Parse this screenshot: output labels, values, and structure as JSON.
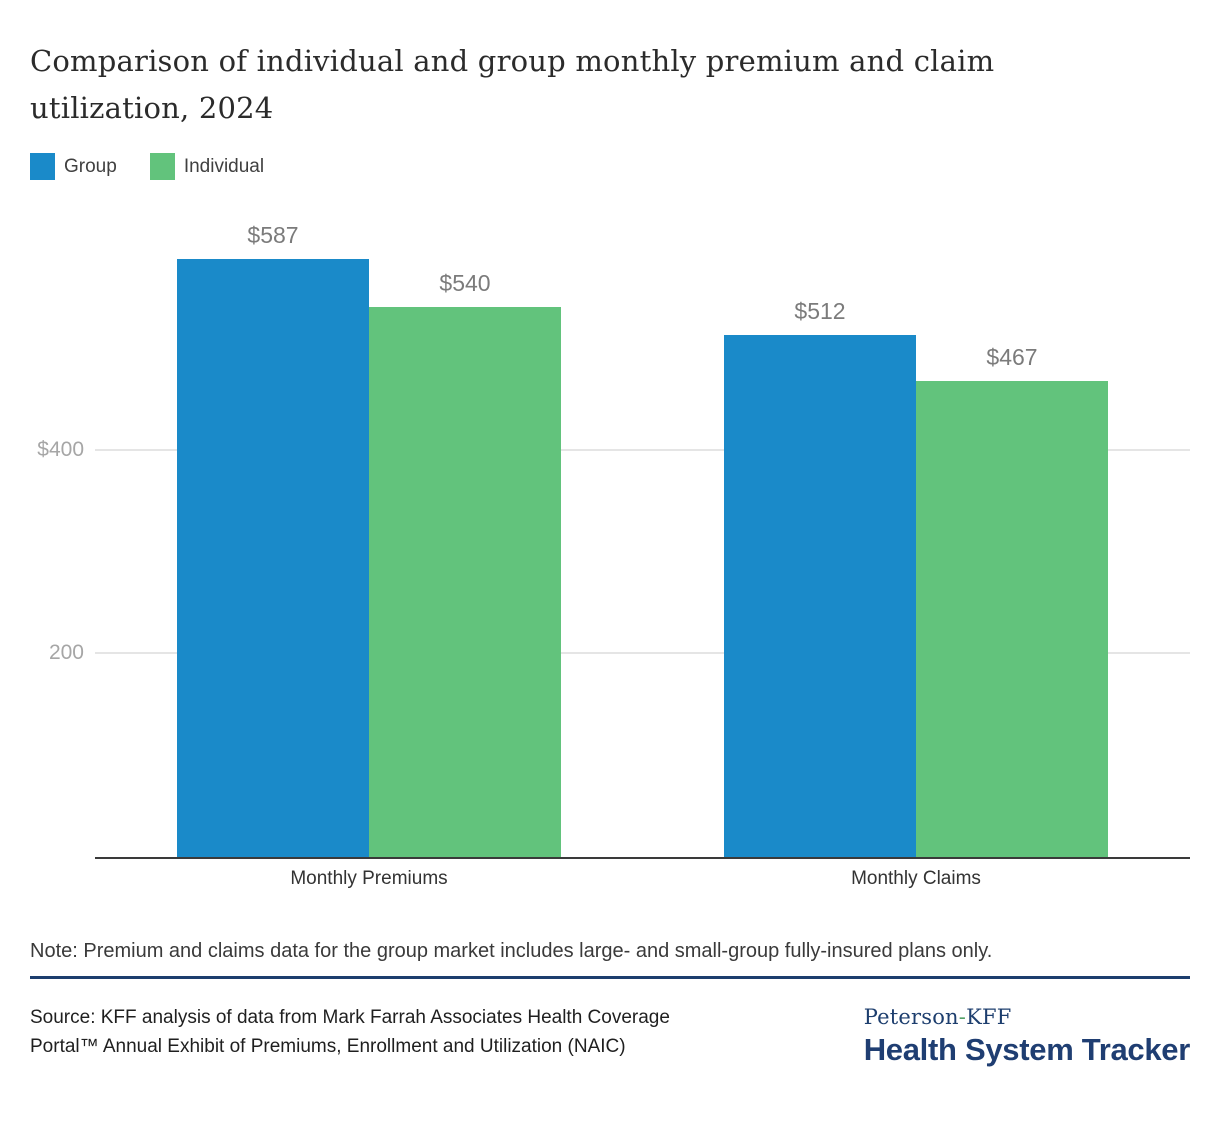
{
  "page": {
    "title": "Comparison of individual and group monthly premium and claim utilization, 2024",
    "note": "Note: Premium and claims data for the group market includes large- and small-group fully-insured plans only.",
    "source": "Source: KFF analysis of data from Mark Farrah Associates Health Coverage Portal™ Annual Exhibit of Premiums, Enrollment and Utilization (NAIC)",
    "logo": {
      "brand_top_left": "Peterson",
      "brand_top_hyphen": "-",
      "brand_top_right": "KFF",
      "brand_bottom": "Health System Tracker"
    }
  },
  "legend": {
    "items": [
      {
        "label": "Group",
        "color": "#1a8ac9"
      },
      {
        "label": "Individual",
        "color": "#62c37c"
      }
    ]
  },
  "chart_data": {
    "type": "bar",
    "title": "Comparison of individual and group monthly premium and claim utilization, 2024",
    "categories": [
      "Monthly Premiums",
      "Monthly Claims"
    ],
    "series": [
      {
        "name": "Group",
        "color": "#1a8ac9",
        "values": [
          587,
          512
        ],
        "labels": [
          "$587",
          "$512"
        ]
      },
      {
        "name": "Individual",
        "color": "#62c37c",
        "values": [
          540,
          467
        ],
        "labels": [
          "$540",
          "$467"
        ]
      }
    ],
    "y_ticks": [
      {
        "value": 400,
        "label": "$400"
      },
      {
        "value": 200,
        "label": "200"
      }
    ],
    "ylim": [
      0,
      645
    ],
    "grid": true,
    "legend_position": "top-left",
    "xlabel": "",
    "ylabel": ""
  },
  "colors": {
    "group_blue": "#1a8ac9",
    "individual_green": "#62c37c",
    "axis_line": "#3a3a3a",
    "gridline": "#e5e5e5",
    "tick_text": "#a6a6a6",
    "value_text": "#7b7b7b",
    "navy_brand": "#1d3e6e",
    "logo_hyphen_green": "#54a168"
  }
}
